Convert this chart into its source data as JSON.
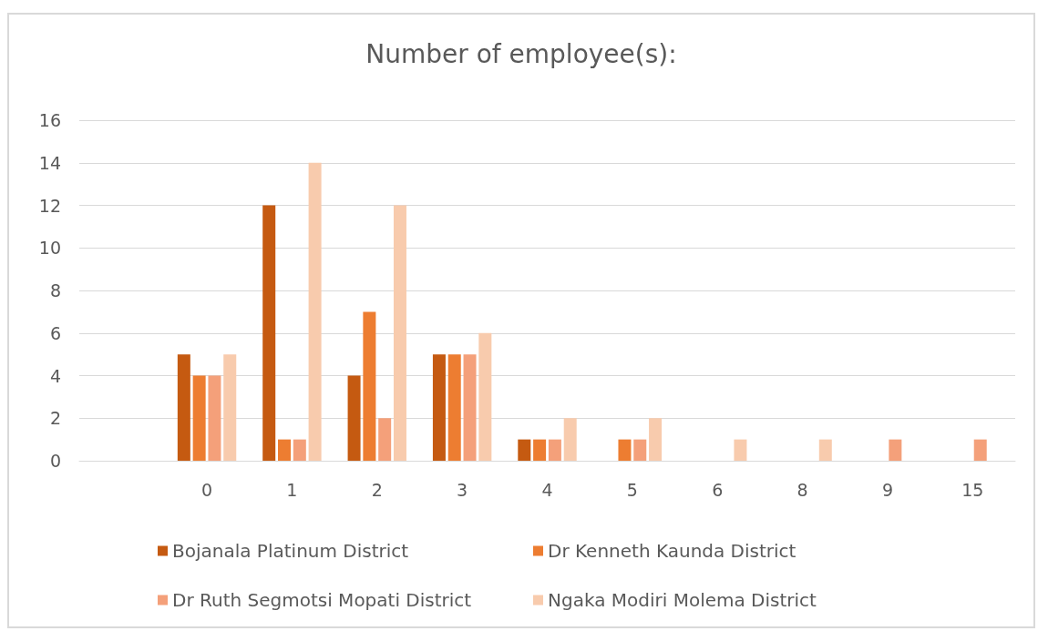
{
  "chart_data": {
    "type": "bar",
    "title": "Number of employee(s):",
    "categories": [
      null,
      "0",
      "1",
      "2",
      "3",
      "4",
      "5",
      "6",
      "8",
      "9",
      "15"
    ],
    "series": [
      {
        "name": "Bojanala Platinum District",
        "color": "#c55a11",
        "values": [
          null,
          5,
          12,
          4,
          5,
          1,
          0,
          0,
          0,
          0,
          0
        ]
      },
      {
        "name": "Dr Kenneth Kaunda District",
        "color": "#ed7d31",
        "values": [
          null,
          4,
          1,
          7,
          5,
          1,
          1,
          0,
          0,
          0,
          0
        ]
      },
      {
        "name": "Dr Ruth Segmotsi Mopati District",
        "color": "#f4a07a",
        "values": [
          null,
          4,
          1,
          2,
          5,
          1,
          1,
          0,
          0,
          1,
          1
        ]
      },
      {
        "name": "Ngaka Modiri Molema District",
        "color": "#f8cbad",
        "values": [
          null,
          5,
          14,
          12,
          6,
          2,
          2,
          1,
          1,
          0,
          0
        ]
      }
    ],
    "ylim": [
      0,
      16
    ],
    "yticks": [
      0,
      2,
      4,
      6,
      8,
      10,
      12,
      14,
      16
    ],
    "grid": "y",
    "legend": "bottom"
  }
}
